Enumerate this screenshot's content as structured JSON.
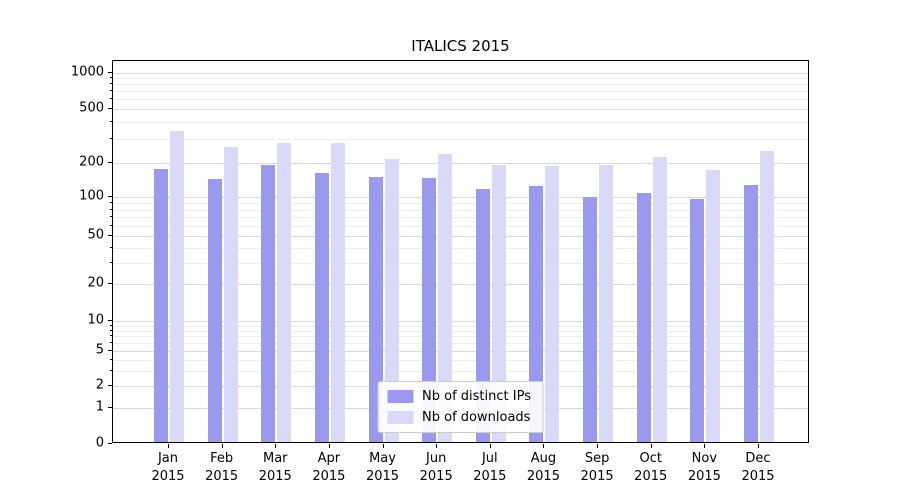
{
  "chart_data": {
    "type": "bar",
    "title": "ITALICS 2015",
    "categories": [
      "Jan",
      "Feb",
      "Mar",
      "Apr",
      "May",
      "Jun",
      "Jul",
      "Aug",
      "Sep",
      "Oct",
      "Nov",
      "Dec"
    ],
    "year_label": "2015",
    "series": [
      {
        "name": "Nb of distinct IPs",
        "color": "#9999ee",
        "values": [
          170,
          138,
          185,
          155,
          145,
          142,
          112,
          120,
          97,
          105,
          93,
          122
        ]
      },
      {
        "name": "Nb of downloads",
        "color": "#d9d9f8",
        "values": [
          330,
          255,
          270,
          270,
          205,
          225,
          185,
          180,
          185,
          215,
          165,
          235
        ]
      }
    ],
    "yscale": "symlog",
    "yticks": [
      0,
      1,
      2,
      5,
      10,
      20,
      50,
      100,
      200,
      500,
      1000
    ],
    "ylim": [
      0,
      1200
    ],
    "grid": "horizontal",
    "legend_position": "lower center"
  }
}
